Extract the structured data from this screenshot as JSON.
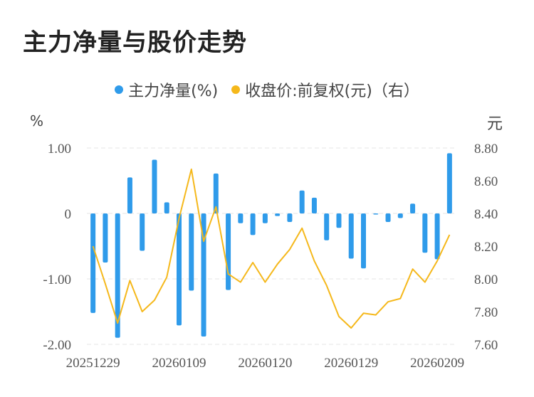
{
  "title": "主力净量与股价走势",
  "legend": {
    "bar_label": "主力净量(%)",
    "line_label": "收盘价:前复权(元)（右）"
  },
  "units": {
    "left": "%",
    "right": "元"
  },
  "colors": {
    "bar": "#2f9bea",
    "line": "#f5b81b",
    "grid": "#e6e6e6",
    "title": "#222222"
  },
  "chart_data": {
    "type": "bar+line",
    "title": "主力净量与股价走势",
    "x_tick_labels": [
      "20251229",
      "20260109",
      "20260120",
      "20260129",
      "20260209"
    ],
    "y_left": {
      "label": "%",
      "range": [
        -2.0,
        1.0
      ],
      "ticks": [
        "1.00",
        "0",
        "-1.00",
        "-2.00"
      ]
    },
    "y_right": {
      "label": "元",
      "range": [
        7.6,
        8.8
      ],
      "ticks": [
        "8.80",
        "8.60",
        "8.40",
        "8.20",
        "8.00",
        "7.80",
        "7.60"
      ]
    },
    "series": [
      {
        "name": "主力净量(%)",
        "type": "bar",
        "axis": "left",
        "values": [
          -1.52,
          -0.75,
          -1.9,
          0.55,
          -0.57,
          0.82,
          0.17,
          -1.71,
          -1.18,
          -1.88,
          0.61,
          -1.17,
          -0.15,
          -0.33,
          -0.15,
          -0.04,
          -0.13,
          0.35,
          0.24,
          -0.41,
          -0.22,
          -0.69,
          -0.84,
          -0.01,
          -0.13,
          -0.07,
          0.15,
          -0.6,
          -0.7,
          0.92
        ]
      },
      {
        "name": "收盘价:前复权(元)（右）",
        "type": "line",
        "axis": "right",
        "values": [
          8.2,
          7.97,
          7.73,
          7.99,
          7.8,
          7.87,
          8.01,
          8.37,
          8.67,
          8.23,
          8.44,
          8.03,
          7.98,
          8.1,
          7.98,
          8.09,
          8.18,
          8.31,
          8.11,
          7.96,
          7.77,
          7.7,
          7.79,
          7.78,
          7.86,
          7.88,
          8.06,
          7.98,
          8.11,
          8.27
        ]
      }
    ]
  }
}
